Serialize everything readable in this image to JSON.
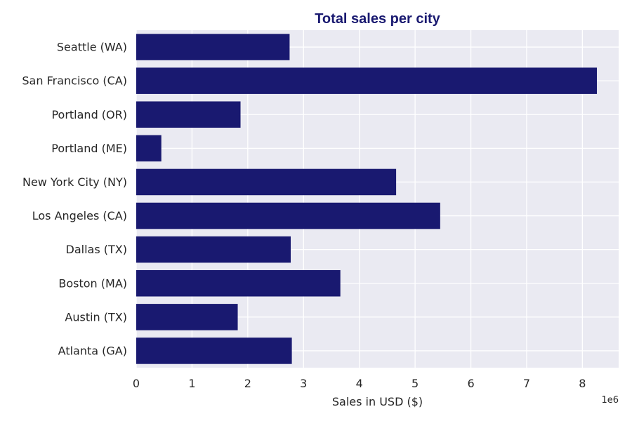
{
  "chart_data": {
    "type": "bar",
    "orientation": "horizontal",
    "title": "Total sales per city",
    "xlabel": "Sales in USD ($)",
    "ylabel": "",
    "x_offset_label": "1e6",
    "x_ticks": [
      "0",
      "1",
      "2",
      "3",
      "4",
      "5",
      "6",
      "7",
      "8"
    ],
    "xlim": [
      0,
      8.65
    ],
    "grid": true,
    "categories": [
      "Atlanta  (GA)",
      "Austin  (TX)",
      "Boston  (MA)",
      "Dallas  (TX)",
      "Los Angeles  (CA)",
      "New York City  (NY)",
      "Portland  (ME)",
      "Portland  (OR)",
      "San Francisco  (CA)",
      "Seattle  (WA)"
    ],
    "values": [
      2.79,
      1.82,
      3.66,
      2.77,
      5.45,
      4.66,
      0.45,
      1.87,
      8.26,
      2.75
    ],
    "value_multiplier": "1e6"
  },
  "colors": {
    "bar": "#191970",
    "title": "#191970",
    "plot_background": "#eaeaf2",
    "grid": "#ffffff",
    "text": "#262626"
  }
}
